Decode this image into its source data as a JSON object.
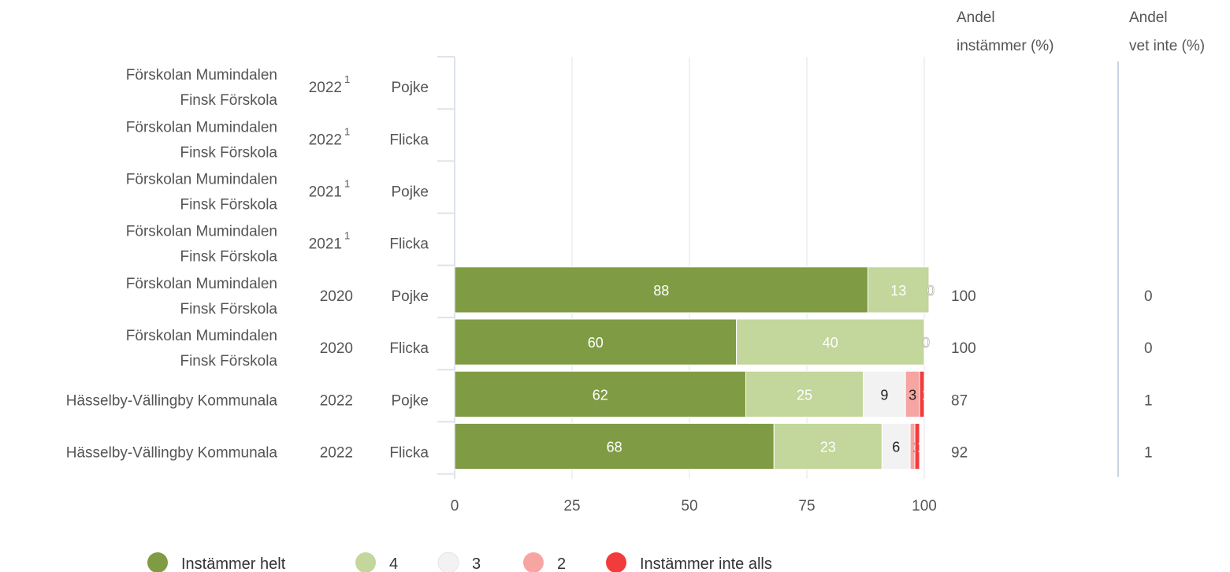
{
  "columns": {
    "agree_header": [
      "Andel",
      "instämmer (%)"
    ],
    "dontknow_header": [
      "Andel",
      "vet inte (%)"
    ]
  },
  "colors": {
    "helt": "#7f9c45",
    "four": "#c3d69b",
    "three": "#f2f2f2",
    "two": "#f6a5a3",
    "inte": "#f23c3c",
    "grid": "#dde3ec",
    "text": "#555555"
  },
  "chart_data": {
    "type": "bar",
    "orientation": "horizontal",
    "stacked": true,
    "xlim": [
      0,
      100
    ],
    "xticks": [
      "0",
      "25",
      "50",
      "75",
      "100"
    ],
    "legend_position": "bottom",
    "legend": [
      "Instämmer helt",
      "4",
      "3",
      "2",
      "Instämmer inte alls"
    ],
    "rows": [
      {
        "name": [
          "Förskolan Mumindalen",
          "Finsk Förskola"
        ],
        "year": "2022",
        "footnote": "1",
        "gender": "Pojke",
        "values": null,
        "agree": "",
        "dontknow": ""
      },
      {
        "name": [
          "Förskolan Mumindalen",
          "Finsk Förskola"
        ],
        "year": "2022",
        "footnote": "1",
        "gender": "Flicka",
        "values": null,
        "agree": "",
        "dontknow": ""
      },
      {
        "name": [
          "Förskolan Mumindalen",
          "Finsk Förskola"
        ],
        "year": "2021",
        "footnote": "1",
        "gender": "Pojke",
        "values": null,
        "agree": "",
        "dontknow": ""
      },
      {
        "name": [
          "Förskolan Mumindalen",
          "Finsk Förskola"
        ],
        "year": "2021",
        "footnote": "1",
        "gender": "Flicka",
        "values": null,
        "agree": "",
        "dontknow": ""
      },
      {
        "name": [
          "Förskolan Mumindalen",
          "Finsk Förskola"
        ],
        "year": "2020",
        "footnote": "",
        "gender": "Pojke",
        "values": [
          88,
          13,
          0,
          0,
          0
        ],
        "labels": [
          "88",
          "13",
          "0",
          "",
          ""
        ],
        "agree": "100",
        "dontknow": "0"
      },
      {
        "name": [
          "Förskolan Mumindalen",
          "Finsk Förskola"
        ],
        "year": "2020",
        "footnote": "",
        "gender": "Flicka",
        "values": [
          60,
          40,
          0,
          0,
          0
        ],
        "labels": [
          "60",
          "40",
          "0",
          "",
          ""
        ],
        "agree": "100",
        "dontknow": "0"
      },
      {
        "name": [
          "Hässelby-Vällingby Kommunala"
        ],
        "year": "2022",
        "footnote": "",
        "gender": "Pojke",
        "values": [
          62,
          25,
          9,
          3,
          1
        ],
        "labels": [
          "62",
          "25",
          "9",
          "3",
          "1"
        ],
        "agree": "87",
        "dontknow": "1"
      },
      {
        "name": [
          "Hässelby-Vällingby Kommunala"
        ],
        "year": "2022",
        "footnote": "",
        "gender": "Flicka",
        "values": [
          68,
          23,
          6,
          1,
          1
        ],
        "labels": [
          "68",
          "23",
          "6",
          "1",
          "1"
        ],
        "agree": "92",
        "dontknow": "1"
      }
    ]
  }
}
